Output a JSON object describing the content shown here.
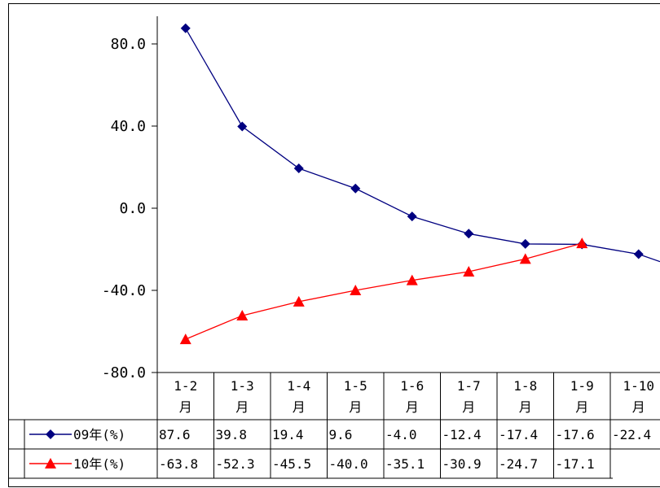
{
  "chart_data": {
    "type": "line",
    "title": "",
    "xlabel": "",
    "ylabel": "",
    "ylim": [
      -80,
      80
    ],
    "yticks": [
      80,
      40,
      0,
      -40,
      -80
    ],
    "ytick_labels": [
      "80.0",
      "40.0",
      "0.0",
      "-40.0",
      "-80.0"
    ],
    "categories": [
      "1-2",
      "1-3",
      "1-4",
      "1-5",
      "1-6",
      "1-7",
      "1-8",
      "1-9",
      "1-10"
    ],
    "category_suffix": "月",
    "grid": false,
    "legend": "data-table-left",
    "series": [
      {
        "name": "09年(%)",
        "color": "#000080",
        "marker": "diamond",
        "values": [
          87.6,
          39.8,
          19.4,
          9.6,
          -4.0,
          -12.4,
          -17.4,
          -17.6,
          -22.4
        ],
        "labels": [
          "87.6",
          "39.8",
          "19.4",
          "9.6",
          "-4.0",
          "-12.4",
          "-17.4",
          "-17.6",
          "-22.4"
        ],
        "trailing_value": -26.0
      },
      {
        "name": "10年(%)",
        "color": "#ff0000",
        "marker": "triangle",
        "values": [
          -63.8,
          -52.3,
          -45.5,
          -40.0,
          -35.1,
          -30.9,
          -24.7,
          -17.1,
          null
        ],
        "labels": [
          "-63.8",
          "-52.3",
          "-45.5",
          "-40.0",
          "-35.1",
          "-30.9",
          "-24.7",
          "-17.1",
          ""
        ]
      }
    ]
  }
}
